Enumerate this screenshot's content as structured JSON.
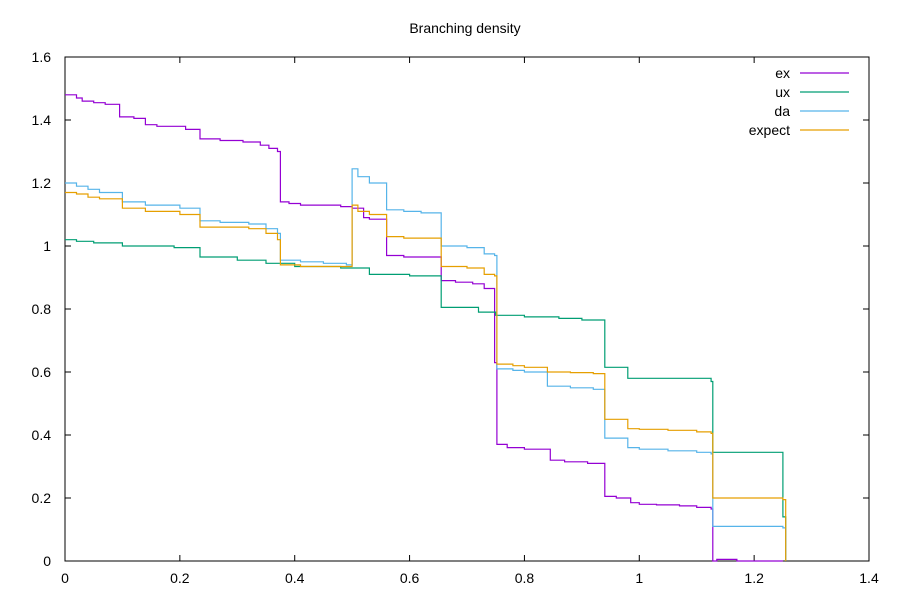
{
  "chart_data": {
    "type": "line",
    "title": "Branching density",
    "xlabel": "",
    "ylabel": "",
    "xlim": [
      0,
      1.4
    ],
    "ylim": [
      0,
      1.6
    ],
    "x_ticks": [
      "0",
      "0.2",
      "0.4",
      "0.6",
      "0.8",
      "1",
      "1.2",
      "1.4"
    ],
    "x_tick_values": [
      0,
      0.2,
      0.4,
      0.6,
      0.8,
      1.0,
      1.2,
      1.4
    ],
    "y_ticks": [
      "0",
      "0.2",
      "0.4",
      "0.6",
      "0.8",
      "1",
      "1.2",
      "1.4",
      "1.6"
    ],
    "y_tick_values": [
      0,
      0.2,
      0.4,
      0.6,
      0.8,
      1.0,
      1.2,
      1.4,
      1.6
    ],
    "grid": false,
    "legend_position": "top-right",
    "step": true,
    "series": [
      {
        "name": "ex",
        "color": "#9400d3",
        "points": [
          [
            0,
            1.48
          ],
          [
            0.02,
            1.47
          ],
          [
            0.03,
            1.46
          ],
          [
            0.05,
            1.455
          ],
          [
            0.07,
            1.45
          ],
          [
            0.095,
            1.41
          ],
          [
            0.12,
            1.405
          ],
          [
            0.14,
            1.385
          ],
          [
            0.16,
            1.38
          ],
          [
            0.19,
            1.38
          ],
          [
            0.21,
            1.37
          ],
          [
            0.235,
            1.34
          ],
          [
            0.27,
            1.335
          ],
          [
            0.31,
            1.33
          ],
          [
            0.34,
            1.32
          ],
          [
            0.355,
            1.31
          ],
          [
            0.37,
            1.3
          ],
          [
            0.375,
            1.14
          ],
          [
            0.39,
            1.135
          ],
          [
            0.41,
            1.13
          ],
          [
            0.45,
            1.13
          ],
          [
            0.48,
            1.125
          ],
          [
            0.5,
            1.12
          ],
          [
            0.52,
            1.09
          ],
          [
            0.53,
            1.085
          ],
          [
            0.56,
            0.97
          ],
          [
            0.59,
            0.965
          ],
          [
            0.62,
            0.965
          ],
          [
            0.655,
            0.89
          ],
          [
            0.68,
            0.885
          ],
          [
            0.71,
            0.88
          ],
          [
            0.73,
            0.865
          ],
          [
            0.745,
            0.865
          ],
          [
            0.748,
            0.63
          ],
          [
            0.752,
            0.37
          ],
          [
            0.77,
            0.36
          ],
          [
            0.8,
            0.355
          ],
          [
            0.82,
            0.355
          ],
          [
            0.845,
            0.32
          ],
          [
            0.87,
            0.315
          ],
          [
            0.91,
            0.31
          ],
          [
            0.94,
            0.205
          ],
          [
            0.96,
            0.2
          ],
          [
            0.985,
            0.185
          ],
          [
            1.0,
            0.18
          ],
          [
            1.03,
            0.178
          ],
          [
            1.07,
            0.175
          ],
          [
            1.1,
            0.17
          ],
          [
            1.125,
            0.165
          ],
          [
            1.128,
            0.0
          ],
          [
            1.135,
            0.005
          ],
          [
            1.17,
            0.0
          ],
          [
            1.25,
            0.0
          ]
        ]
      },
      {
        "name": "ux",
        "color": "#009e73",
        "points": [
          [
            0,
            1.02
          ],
          [
            0.02,
            1.015
          ],
          [
            0.05,
            1.01
          ],
          [
            0.1,
            1.0
          ],
          [
            0.19,
            0.995
          ],
          [
            0.235,
            0.965
          ],
          [
            0.3,
            0.955
          ],
          [
            0.35,
            0.945
          ],
          [
            0.4,
            0.935
          ],
          [
            0.48,
            0.93
          ],
          [
            0.53,
            0.91
          ],
          [
            0.6,
            0.905
          ],
          [
            0.655,
            0.805
          ],
          [
            0.72,
            0.79
          ],
          [
            0.75,
            0.78
          ],
          [
            0.8,
            0.775
          ],
          [
            0.86,
            0.77
          ],
          [
            0.9,
            0.765
          ],
          [
            0.94,
            0.615
          ],
          [
            0.98,
            0.58
          ],
          [
            1.0,
            0.58
          ],
          [
            1.125,
            0.57
          ],
          [
            1.128,
            0.345
          ],
          [
            1.2,
            0.345
          ],
          [
            1.25,
            0.14
          ],
          [
            1.255,
            0.0
          ]
        ]
      },
      {
        "name": "da",
        "color": "#56b4e9",
        "points": [
          [
            0,
            1.2
          ],
          [
            0.02,
            1.19
          ],
          [
            0.04,
            1.18
          ],
          [
            0.06,
            1.17
          ],
          [
            0.1,
            1.14
          ],
          [
            0.14,
            1.13
          ],
          [
            0.2,
            1.12
          ],
          [
            0.235,
            1.08
          ],
          [
            0.27,
            1.075
          ],
          [
            0.32,
            1.07
          ],
          [
            0.35,
            1.055
          ],
          [
            0.37,
            1.04
          ],
          [
            0.375,
            0.955
          ],
          [
            0.41,
            0.95
          ],
          [
            0.45,
            0.945
          ],
          [
            0.49,
            0.94
          ],
          [
            0.5,
            1.245
          ],
          [
            0.51,
            1.22
          ],
          [
            0.53,
            1.2
          ],
          [
            0.56,
            1.115
          ],
          [
            0.59,
            1.11
          ],
          [
            0.62,
            1.105
          ],
          [
            0.655,
            1.0
          ],
          [
            0.7,
            0.995
          ],
          [
            0.73,
            0.975
          ],
          [
            0.748,
            0.97
          ],
          [
            0.752,
            0.61
          ],
          [
            0.78,
            0.605
          ],
          [
            0.8,
            0.6
          ],
          [
            0.84,
            0.555
          ],
          [
            0.88,
            0.55
          ],
          [
            0.92,
            0.545
          ],
          [
            0.94,
            0.39
          ],
          [
            0.98,
            0.36
          ],
          [
            1.0,
            0.355
          ],
          [
            1.05,
            0.35
          ],
          [
            1.1,
            0.345
          ],
          [
            1.125,
            0.34
          ],
          [
            1.128,
            0.11
          ],
          [
            1.2,
            0.11
          ],
          [
            1.25,
            0.105
          ],
          [
            1.255,
            0.0
          ]
        ]
      },
      {
        "name": "expect",
        "color": "#e69f00",
        "points": [
          [
            0,
            1.17
          ],
          [
            0.02,
            1.165
          ],
          [
            0.04,
            1.155
          ],
          [
            0.06,
            1.15
          ],
          [
            0.1,
            1.12
          ],
          [
            0.14,
            1.11
          ],
          [
            0.2,
            1.1
          ],
          [
            0.235,
            1.06
          ],
          [
            0.27,
            1.06
          ],
          [
            0.32,
            1.055
          ],
          [
            0.35,
            1.04
          ],
          [
            0.37,
            1.02
          ],
          [
            0.375,
            0.94
          ],
          [
            0.41,
            0.935
          ],
          [
            0.45,
            0.935
          ],
          [
            0.49,
            0.935
          ],
          [
            0.5,
            1.13
          ],
          [
            0.51,
            1.11
          ],
          [
            0.53,
            1.1
          ],
          [
            0.56,
            1.03
          ],
          [
            0.59,
            1.025
          ],
          [
            0.62,
            1.025
          ],
          [
            0.655,
            0.935
          ],
          [
            0.7,
            0.93
          ],
          [
            0.73,
            0.91
          ],
          [
            0.748,
            0.905
          ],
          [
            0.752,
            0.625
          ],
          [
            0.78,
            0.62
          ],
          [
            0.8,
            0.615
          ],
          [
            0.84,
            0.6
          ],
          [
            0.88,
            0.598
          ],
          [
            0.92,
            0.595
          ],
          [
            0.94,
            0.45
          ],
          [
            0.98,
            0.42
          ],
          [
            1.0,
            0.418
          ],
          [
            1.05,
            0.415
          ],
          [
            1.1,
            0.41
          ],
          [
            1.125,
            0.405
          ],
          [
            1.128,
            0.2
          ],
          [
            1.2,
            0.2
          ],
          [
            1.25,
            0.195
          ],
          [
            1.255,
            0.0
          ]
        ]
      }
    ]
  }
}
